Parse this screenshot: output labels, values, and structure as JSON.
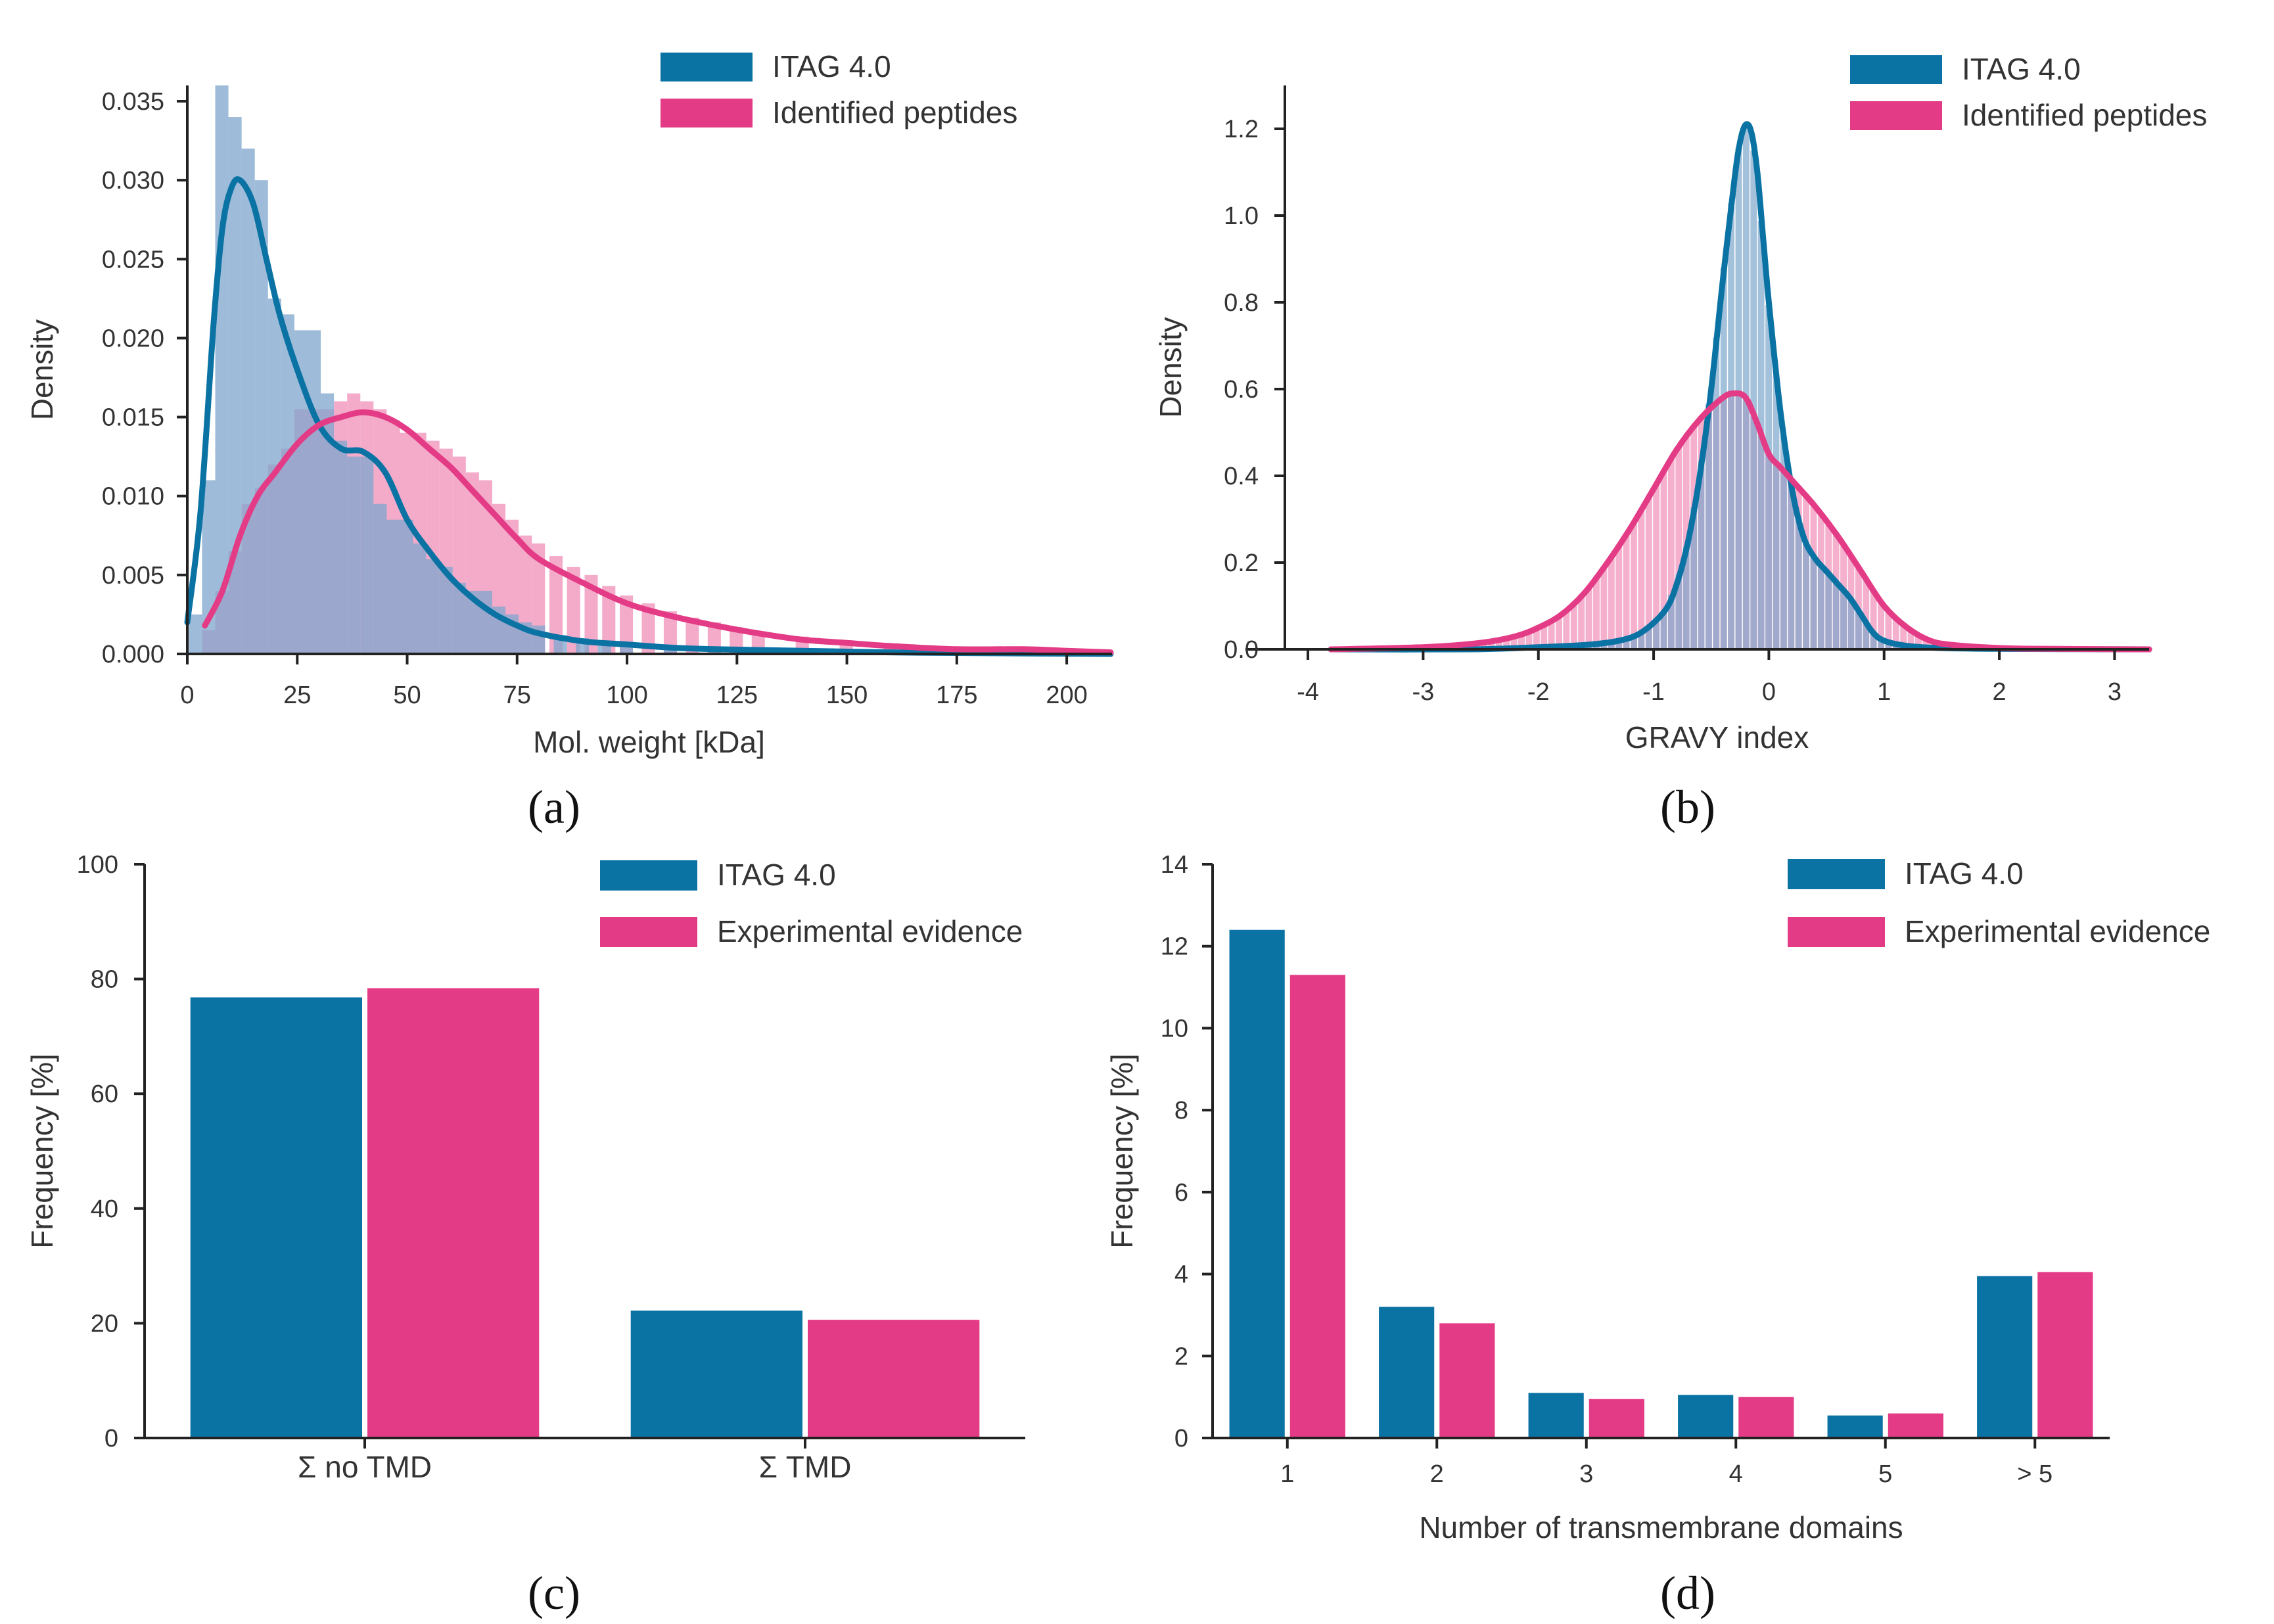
{
  "colors": {
    "itag": "#0a73a4",
    "exp": "#e33b85",
    "hist_itag": "#7ea6cc",
    "hist_exp": "#f08fb8",
    "axis": "#222222"
  },
  "panels": [
    {
      "label": "(a)",
      "chart_data": {
        "type": "area",
        "xlabel": "Mol. weight [kDa]",
        "ylabel": "Density",
        "xlim": [
          0,
          210
        ],
        "ylim": [
          0,
          0.036
        ],
        "xticks": [
          "0",
          "25",
          "50",
          "75",
          "100",
          "125",
          "150",
          "175",
          "200"
        ],
        "xtick_values": [
          0,
          25,
          50,
          75,
          100,
          125,
          150,
          175,
          200
        ],
        "yticks": [
          "0.000",
          "0.005",
          "0.010",
          "0.015",
          "0.020",
          "0.025",
          "0.030",
          "0.035"
        ],
        "ytick_values": [
          0,
          0.005,
          0.01,
          0.015,
          0.02,
          0.025,
          0.03,
          0.035
        ],
        "legend": [
          "ITAG 4.0",
          "Identified peptides"
        ],
        "legend_position": "top-right",
        "bin_width": 3.3,
        "series": [
          {
            "name": "ITAG 4.0",
            "hist_centers": [
              2,
              5,
              8,
              11,
              14,
              17,
              20,
              23,
              26,
              29,
              32,
              35,
              38,
              41,
              44,
              47,
              50,
              53,
              56,
              59,
              62,
              65,
              68,
              71,
              74,
              77,
              80,
              85,
              90,
              95,
              100,
              110,
              120,
              130,
              150,
              170,
              190,
              205
            ],
            "hist_values": [
              0.0025,
              0.011,
              0.036,
              0.034,
              0.032,
              0.03,
              0.0225,
              0.0215,
              0.0205,
              0.0205,
              0.0165,
              0.0135,
              0.0125,
              0.0125,
              0.0095,
              0.0085,
              0.0085,
              0.007,
              0.006,
              0.0055,
              0.0045,
              0.004,
              0.004,
              0.003,
              0.0025,
              0.002,
              0.0018,
              0.0012,
              0.001,
              0.0008,
              0.0006,
              0.0004,
              0.0003,
              0.0002,
              0.0001,
              0.0001,
              0.0001,
              0.0001
            ],
            "kde_x": [
              0,
              3,
              6,
              8,
              10,
              12,
              15,
              18,
              21,
              25,
              30,
              35,
              40,
              45,
              50,
              55,
              60,
              65,
              70,
              75,
              80,
              90,
              100,
              110,
              120,
              140,
              160,
              180,
              210
            ],
            "kde_y": [
              0.002,
              0.009,
              0.021,
              0.027,
              0.0295,
              0.03,
              0.0285,
              0.025,
              0.0215,
              0.018,
              0.0145,
              0.013,
              0.0128,
              0.0115,
              0.0085,
              0.0065,
              0.0048,
              0.0035,
              0.0025,
              0.0018,
              0.0013,
              0.0008,
              0.0006,
              0.0004,
              0.0003,
              0.0002,
              0.0001,
              5e-05,
              0.0
            ]
          },
          {
            "name": "Identified peptides",
            "hist_centers": [
              5,
              8,
              11,
              14,
              17,
              20,
              23,
              26,
              29,
              32,
              35,
              38,
              41,
              44,
              47,
              50,
              53,
              56,
              59,
              62,
              65,
              68,
              71,
              74,
              77,
              80,
              84,
              88,
              92,
              96,
              100,
              105,
              110,
              115,
              120,
              125,
              130,
              140,
              150,
              160,
              170,
              180,
              190,
              200,
              207
            ],
            "hist_values": [
              0.0015,
              0.004,
              0.0065,
              0.0095,
              0.0105,
              0.012,
              0.013,
              0.0155,
              0.0155,
              0.0155,
              0.016,
              0.0165,
              0.016,
              0.0155,
              0.0148,
              0.014,
              0.014,
              0.0135,
              0.013,
              0.0125,
              0.0115,
              0.011,
              0.0095,
              0.0085,
              0.0075,
              0.007,
              0.0062,
              0.0055,
              0.005,
              0.0043,
              0.0037,
              0.0032,
              0.0027,
              0.0023,
              0.002,
              0.0017,
              0.0014,
              0.0011,
              0.0008,
              0.0006,
              0.0005,
              0.0004,
              0.0003,
              0.0002,
              0.0002
            ],
            "kde_x": [
              4,
              8,
              12,
              16,
              20,
              25,
              30,
              35,
              40,
              45,
              50,
              55,
              60,
              65,
              70,
              75,
              80,
              90,
              100,
              110,
              120,
              130,
              140,
              150,
              160,
              175,
              190,
              200,
              210
            ],
            "kde_y": [
              0.0018,
              0.004,
              0.0075,
              0.01,
              0.0115,
              0.0133,
              0.0145,
              0.015,
              0.0153,
              0.015,
              0.0142,
              0.013,
              0.0118,
              0.0103,
              0.0088,
              0.0073,
              0.006,
              0.0045,
              0.0032,
              0.0024,
              0.0018,
              0.0013,
              0.0009,
              0.0007,
              0.0005,
              0.0003,
              0.0003,
              0.0002,
              0.0001
            ]
          }
        ]
      }
    },
    {
      "label": "(b)",
      "chart_data": {
        "type": "area",
        "xlabel": "GRAVY index",
        "ylabel": "Density",
        "xlim": [
          -4.2,
          3.3
        ],
        "ylim": [
          0,
          1.3
        ],
        "xticks": [
          "-4",
          "-3",
          "-2",
          "-1",
          "0",
          "1",
          "2",
          "3"
        ],
        "xtick_values": [
          -4,
          -3,
          -2,
          -1,
          0,
          1,
          2,
          3
        ],
        "yticks": [
          "0.0",
          "0.2",
          "0.4",
          "0.6",
          "0.8",
          "1.0",
          "1.2"
        ],
        "ytick_values": [
          0,
          0.2,
          0.4,
          0.6,
          0.8,
          1.0,
          1.2
        ],
        "legend": [
          "ITAG 4.0",
          "Identified peptides"
        ],
        "legend_position": "top-right",
        "bin_width": 0.065,
        "series": [
          {
            "name": "ITAG 4.0",
            "kde_x": [
              -3.8,
              -2.6,
              -2.0,
              -1.6,
              -1.3,
              -1.1,
              -0.9,
              -0.8,
              -0.7,
              -0.6,
              -0.5,
              -0.4,
              -0.3,
              -0.25,
              -0.2,
              -0.15,
              -0.1,
              -0.05,
              0.0,
              0.1,
              0.2,
              0.3,
              0.4,
              0.5,
              0.6,
              0.7,
              0.8,
              0.9,
              1.0,
              1.2,
              1.5,
              2.0,
              3.3
            ],
            "kde_y": [
              0.0,
              0.0,
              0.005,
              0.01,
              0.02,
              0.04,
              0.09,
              0.15,
              0.25,
              0.4,
              0.6,
              0.85,
              1.08,
              1.17,
              1.21,
              1.19,
              1.1,
              0.95,
              0.8,
              0.55,
              0.37,
              0.26,
              0.21,
              0.18,
              0.15,
              0.12,
              0.08,
              0.04,
              0.02,
              0.008,
              0.003,
              0.001,
              0.0
            ]
          },
          {
            "name": "Identified peptides",
            "kde_x": [
              -3.8,
              -3.0,
              -2.5,
              -2.2,
              -2.0,
              -1.8,
              -1.6,
              -1.4,
              -1.2,
              -1.0,
              -0.8,
              -0.6,
              -0.4,
              -0.3,
              -0.2,
              -0.1,
              0.0,
              0.1,
              0.2,
              0.4,
              0.6,
              0.8,
              1.0,
              1.2,
              1.4,
              1.6,
              2.0,
              2.5,
              3.3
            ],
            "kde_y": [
              0.0,
              0.005,
              0.015,
              0.03,
              0.05,
              0.08,
              0.13,
              0.2,
              0.28,
              0.37,
              0.46,
              0.53,
              0.58,
              0.59,
              0.58,
              0.52,
              0.45,
              0.42,
              0.39,
              0.33,
              0.26,
              0.18,
              0.1,
              0.05,
              0.02,
              0.01,
              0.003,
              0.001,
              0.0
            ]
          }
        ]
      }
    },
    {
      "label": "(c)",
      "chart_data": {
        "type": "bar",
        "xlabel": "",
        "ylabel": "Frequency [%]",
        "ylim": [
          0,
          100
        ],
        "categories": [
          "Σ no TMD",
          "Σ TMD"
        ],
        "yticks": [
          "0",
          "20",
          "40",
          "60",
          "80",
          "100"
        ],
        "ytick_values": [
          0,
          20,
          40,
          60,
          80,
          100
        ],
        "legend": [
          "ITAG 4.0",
          "Experimental evidence"
        ],
        "legend_position": "top-right",
        "series": [
          {
            "name": "ITAG 4.0",
            "values": [
              76.8,
              22.2
            ]
          },
          {
            "name": "Experimental evidence",
            "values": [
              78.4,
              20.6
            ]
          }
        ]
      }
    },
    {
      "label": "(d)",
      "chart_data": {
        "type": "bar",
        "xlabel": "Number of transmembrane domains",
        "ylabel": "Frequency [%]",
        "ylim": [
          0,
          14
        ],
        "categories": [
          "1",
          "2",
          "3",
          "4",
          "5",
          "> 5"
        ],
        "yticks": [
          "0",
          "2",
          "4",
          "6",
          "8",
          "10",
          "12",
          "14"
        ],
        "ytick_values": [
          0,
          2,
          4,
          6,
          8,
          10,
          12,
          14
        ],
        "legend": [
          "ITAG 4.0",
          "Experimental evidence"
        ],
        "legend_position": "top-right",
        "series": [
          {
            "name": "ITAG 4.0",
            "values": [
              12.4,
              3.2,
              1.1,
              1.05,
              0.55,
              3.95
            ]
          },
          {
            "name": "Experimental evidence",
            "values": [
              11.3,
              2.8,
              0.95,
              1.0,
              0.6,
              4.05
            ]
          }
        ]
      }
    }
  ]
}
